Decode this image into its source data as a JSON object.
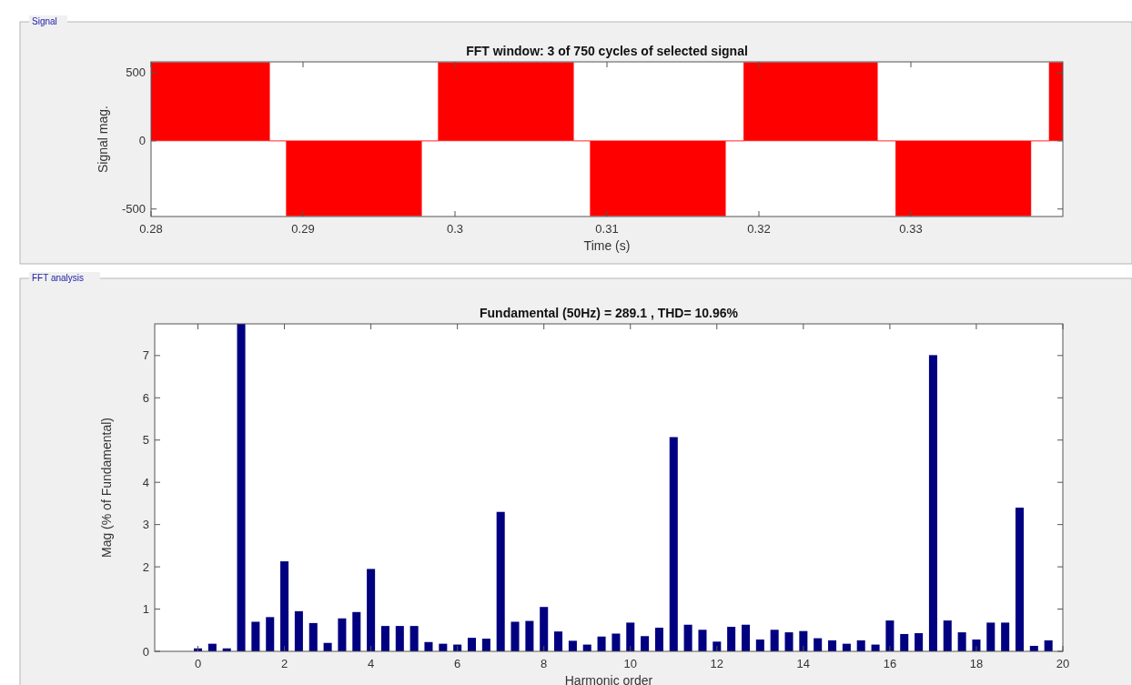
{
  "chart_data": [
    {
      "type": "area",
      "title": "FFT window: 3 of 750 cycles of selected signal",
      "xlabel": "Time (s)",
      "ylabel": "Signal mag.",
      "annotations": [
        "Signal"
      ],
      "xlim": [
        0.28,
        0.34
      ],
      "ylim": [
        -555,
        580
      ],
      "xticks": [
        0.28,
        0.29,
        0.3,
        0.31,
        0.32,
        0.33
      ],
      "yticks": [
        -500,
        0,
        500
      ],
      "grid": false,
      "series": [
        {
          "color": "#ff0000",
          "x": [
            0.28,
            0.2878,
            0.2878,
            0.2889,
            0.2889,
            0.2978,
            0.2978,
            0.2989,
            0.2989,
            0.3078,
            0.3078,
            0.3089,
            0.3089,
            0.3178,
            0.3178,
            0.319,
            0.319,
            0.3278,
            0.3278,
            0.329,
            0.329,
            0.3379,
            0.3379,
            0.3391,
            0.3391,
            0.34
          ],
          "values": [
            575,
            575,
            0,
            0,
            -550,
            -550,
            0,
            0,
            575,
            575,
            0,
            0,
            -550,
            -550,
            0,
            0,
            575,
            575,
            0,
            0,
            -550,
            -550,
            0,
            0,
            575,
            575
          ]
        }
      ]
    },
    {
      "type": "bar",
      "title": "Fundamental (50Hz) = 289.1 , THD= 10.96%",
      "xlabel": "Harmonic order",
      "ylabel": "Mag (% of Fundamental)",
      "annotations": [
        "FFT analysis"
      ],
      "xlim": [
        -1,
        20
      ],
      "ylim": [
        0,
        7.75
      ],
      "xticks": [
        0,
        2,
        4,
        6,
        8,
        10,
        12,
        14,
        16,
        18,
        20
      ],
      "yticks": [
        0,
        1,
        2,
        3,
        4,
        5,
        6,
        7
      ],
      "grid": false,
      "series": [
        {
          "color": "#000080",
          "x": [
            0,
            0.333,
            0.667,
            1,
            1.333,
            1.667,
            2,
            2.333,
            2.667,
            3,
            3.333,
            3.667,
            4,
            4.333,
            4.667,
            5,
            5.333,
            5.667,
            6,
            6.333,
            6.667,
            7,
            7.333,
            7.667,
            8,
            8.333,
            8.667,
            9,
            9.333,
            9.667,
            10,
            10.333,
            10.667,
            11,
            11.333,
            11.667,
            12,
            12.333,
            12.667,
            13,
            13.333,
            13.667,
            14,
            14.333,
            14.667,
            15,
            15.333,
            15.667,
            16,
            16.333,
            16.667,
            17,
            17.333,
            17.667,
            18,
            18.333,
            18.667,
            19,
            19.333,
            19.667
          ],
          "values": [
            0.07,
            0.18,
            0.07,
            7.75,
            0.7,
            0.81,
            2.13,
            0.95,
            0.67,
            0.2,
            0.78,
            0.93,
            1.95,
            0.6,
            0.6,
            0.6,
            0.22,
            0.18,
            0.16,
            0.32,
            0.3,
            3.3,
            0.7,
            0.72,
            1.05,
            0.47,
            0.25,
            0.16,
            0.35,
            0.42,
            0.68,
            0.36,
            0.56,
            5.07,
            0.63,
            0.51,
            0.23,
            0.58,
            0.63,
            0.28,
            0.51,
            0.45,
            0.48,
            0.31,
            0.26,
            0.18,
            0.26,
            0.16,
            0.73,
            0.41,
            0.43,
            7.01,
            0.73,
            0.45,
            0.28,
            0.68,
            0.68,
            3.4,
            0.13,
            0.26
          ]
        }
      ]
    }
  ]
}
